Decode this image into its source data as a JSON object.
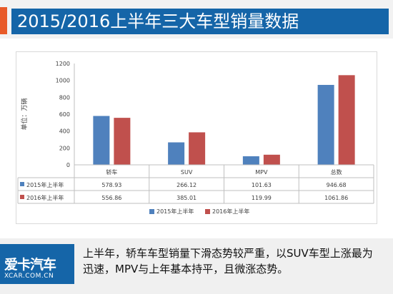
{
  "header": {
    "title": "2015/2016上半年三大车型销量数据"
  },
  "chart_data": {
    "type": "bar",
    "ylabel": "单位：万辆",
    "ylim": [
      0,
      1200
    ],
    "yticks": [
      0,
      200,
      400,
      600,
      800,
      1000,
      1200
    ],
    "categories": [
      "轿车",
      "SUV",
      "MPV",
      "总数"
    ],
    "series": [
      {
        "name": "2015年上半年",
        "color": "#4f81bd",
        "values": [
          578.93,
          266.12,
          101.63,
          946.68
        ]
      },
      {
        "name": "2016年上半年",
        "color": "#c0504d",
        "values": [
          556.86,
          385.01,
          119.99,
          1061.86
        ]
      }
    ],
    "table_labels": [
      "578.93",
      "266.12",
      "101.63",
      "946.68",
      "556.86",
      "385.01",
      "119.99",
      "1061.86"
    ],
    "grid": false,
    "legend": "bottom"
  },
  "footer": {
    "logo_cn": "爱卡汽车",
    "logo_en": "XCAR.COM.CN",
    "summary": "上半年，轿车车型销量下滑态势较严重，以SUV车型上涨最为迅速，MPV与上年基本持平，且微涨态势。"
  }
}
